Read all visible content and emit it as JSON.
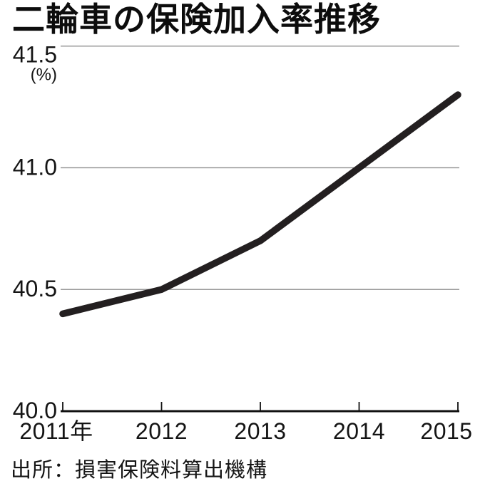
{
  "header": {
    "title": "二輪車の保険加入率推移"
  },
  "source_note": "出所：損害保険料算出機構",
  "chart_data": {
    "type": "line",
    "title": "二輪車の保険加入率推移",
    "unit_label": "(%)",
    "x": [
      2011,
      2012,
      2013,
      2014,
      2015
    ],
    "x_tick_labels": [
      "2011年",
      "2012",
      "2013",
      "2014",
      "2015"
    ],
    "series": [
      {
        "name": "保険加入率",
        "values": [
          40.4,
          40.5,
          40.7,
          41.0,
          41.3
        ]
      }
    ],
    "ylim": [
      40.0,
      41.5
    ],
    "y_ticks": [
      40.0,
      40.5,
      41.0,
      41.5
    ],
    "y_tick_labels": [
      "40.0",
      "40.5",
      "41.0",
      "41.5"
    ],
    "grid": true,
    "legend": false,
    "source": "出所：損害保険料算出機構",
    "colors": {
      "line": "#231f20",
      "grid": "#8c8c8c",
      "axis": "#111111",
      "text": "#141414"
    }
  }
}
